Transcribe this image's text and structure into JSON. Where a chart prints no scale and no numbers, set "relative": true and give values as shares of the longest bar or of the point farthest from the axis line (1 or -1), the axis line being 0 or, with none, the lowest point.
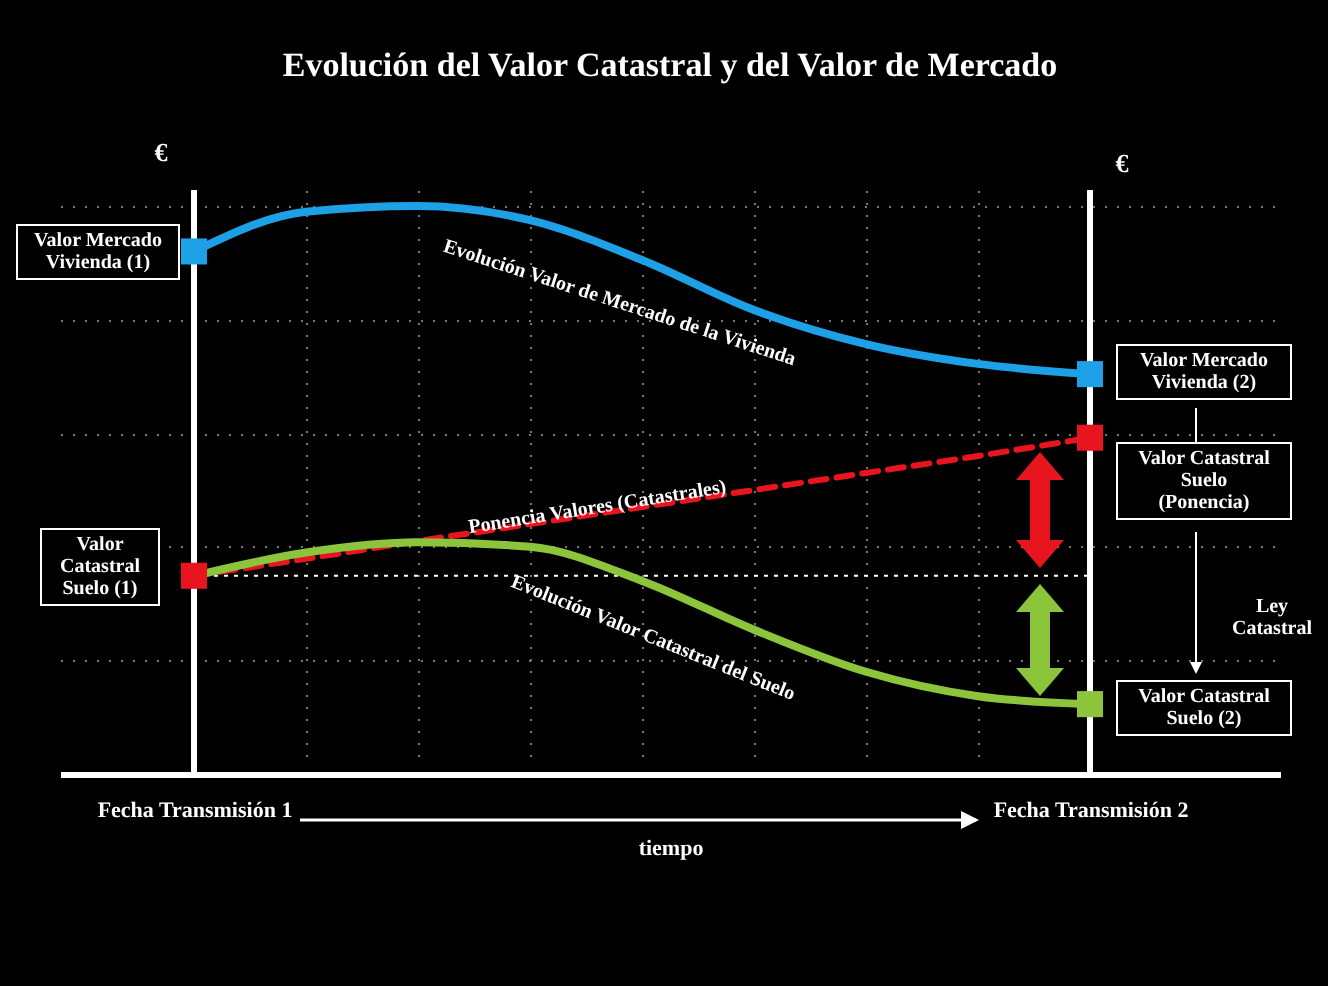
{
  "chart_data": {
    "type": "line",
    "title": "Evolución del Valor Catastral y del Valor de Mercado",
    "xlabel": "tiempo",
    "ylabel": "€",
    "relative": true,
    "grid": true,
    "categories": [
      "Fecha Transmisión 1",
      null,
      null,
      null,
      null,
      null,
      null,
      null,
      "Fecha Transmisión 2"
    ],
    "series": [
      {
        "name": "Evolución Valor de Mercado de la Vivienda",
        "color": "#1ea0e6",
        "line_style": "solid",
        "values": [
          0.92,
          0.99,
          1.0,
          0.975,
          0.905,
          0.817,
          0.757,
          0.722,
          0.704
        ]
      },
      {
        "name": "Ponencia Valores (Catastrales)",
        "color": "#e8141e",
        "line_style": "dashed",
        "values": [
          0.349,
          0.379,
          0.41,
          0.44,
          0.47,
          0.5,
          0.53,
          0.56,
          0.592
        ]
      },
      {
        "name": "Evolución Valor Catastral del Suelo",
        "color": "#8cc43c",
        "line_style": "solid",
        "values": [
          0.349,
          0.39,
          0.408,
          0.4,
          0.34,
          0.254,
          0.18,
          0.137,
          0.123
        ]
      },
      {
        "type": "scatter",
        "marker": "square",
        "color": "#1ea0e6",
        "values": [
          0.92,
          null,
          null,
          null,
          null,
          null,
          null,
          null,
          0.704
        ]
      },
      {
        "type": "scatter",
        "marker": "square",
        "color": "#e8141e",
        "values": [
          0.349,
          null,
          null,
          null,
          null,
          null,
          null,
          null,
          0.592
        ]
      },
      {
        "type": "scatter",
        "marker": "square",
        "color": "#8cc43c",
        "values": [
          null,
          null,
          null,
          null,
          null,
          null,
          null,
          null,
          0.123
        ]
      }
    ],
    "ref_lines": [
      {
        "axis": "x",
        "value": "Fecha Transmisión 1",
        "color": "#ffffff",
        "line_style": "solid"
      },
      {
        "axis": "x",
        "value": "Fecha Transmisión 2",
        "color": "#ffffff",
        "line_style": "solid"
      },
      {
        "axis": "y",
        "value": 0.349,
        "color": "#ffffff",
        "line_style": "dotted"
      }
    ],
    "annotations": [
      "Valor Mercado\nVivienda (1)",
      "Valor\nCatastral\nSuelo (1)",
      "Valor Mercado\nVivienda (2)",
      "Valor Catastral\nSuelo\n(Ponencia)",
      "Valor Catastral\nSuelo (2)",
      "Ley\nCatastral",
      "€"
    ]
  }
}
